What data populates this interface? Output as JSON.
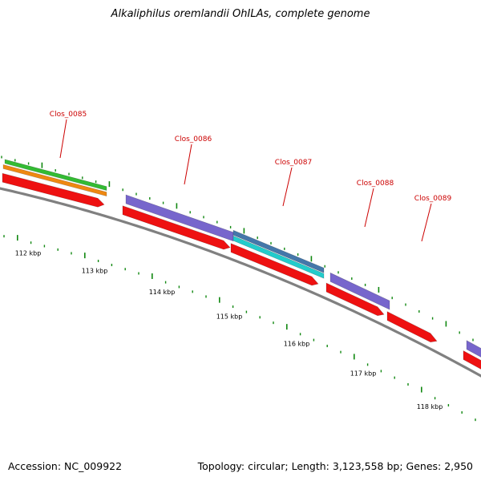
{
  "title": "Alkaliphilus oremlandii OhILAs, complete genome",
  "footer": {
    "accession": "Accession: NC_009922",
    "summary": "Topology: circular; Length: 3,123,558 bp; Genes: 2,950"
  },
  "colors": {
    "backbone": "#808080",
    "gene_label": "#cc0000",
    "tick": "#118811",
    "cds_red": "#ee1111",
    "purple": "#7766cc",
    "cyan": "#22cccc",
    "steelblue": "#4477aa",
    "green": "#33bb33",
    "orange": "#ee8811"
  },
  "genes": [
    {
      "name": "Clos_0085"
    },
    {
      "name": "Clos_0086"
    },
    {
      "name": "Clos_0087"
    },
    {
      "name": "Clos_0088"
    },
    {
      "name": "Clos_0089"
    }
  ],
  "scale_labels": [
    "112 kbp",
    "113 kbp",
    "114 kbp",
    "115 kbp",
    "116 kbp",
    "117 kbp",
    "118 kbp"
  ]
}
